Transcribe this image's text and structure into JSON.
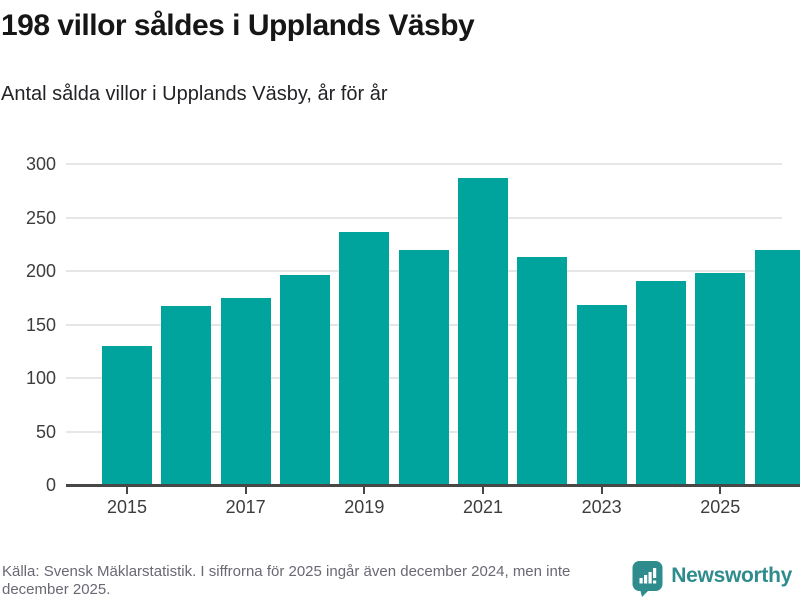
{
  "header": {
    "title": "198 villor såldes i Upplands Väsby",
    "subtitle": "Antal sålda villor i Upplands Väsby, år för år"
  },
  "chart_data": {
    "type": "bar",
    "title": "198 villor såldes i Upplands Väsby",
    "subtitle": "Antal sålda villor i Upplands Väsby, år för år",
    "categories": [
      "2015",
      "2016",
      "2017",
      "2018",
      "2019",
      "2020",
      "2021",
      "2022",
      "2023",
      "2024",
      "2025"
    ],
    "values": [
      130,
      167,
      175,
      196,
      236,
      220,
      287,
      213,
      168,
      191,
      198
    ],
    "partial_next_bar": {
      "visible_at_right_edge": true,
      "value": 220
    },
    "xticks": [
      "2015",
      "2017",
      "2019",
      "2021",
      "2023",
      "2025"
    ],
    "yticks": [
      0,
      50,
      100,
      150,
      200,
      250,
      300
    ],
    "ylim": [
      0,
      300
    ],
    "xlabel": "",
    "ylabel": "",
    "grid": true,
    "legend": "none",
    "bar_color": "#00a49c"
  },
  "footer": {
    "source": "Källa: Svensk Mäklarstatistik. I siffrorna för 2025 ingår även december 2024, men inte december 2025.",
    "brand": "Newsworthy"
  },
  "colors": {
    "bar": "#00a49c",
    "brand_teal": "#2e8d8c",
    "title_text": "#161616",
    "axis_text": "#3d3d3d",
    "footer_text": "#696973",
    "gridline": "#e6e6e6",
    "axis_line": "#474747"
  },
  "icons": {
    "logo": "newsworthy-speech-bubble-bar-chart-icon"
  }
}
